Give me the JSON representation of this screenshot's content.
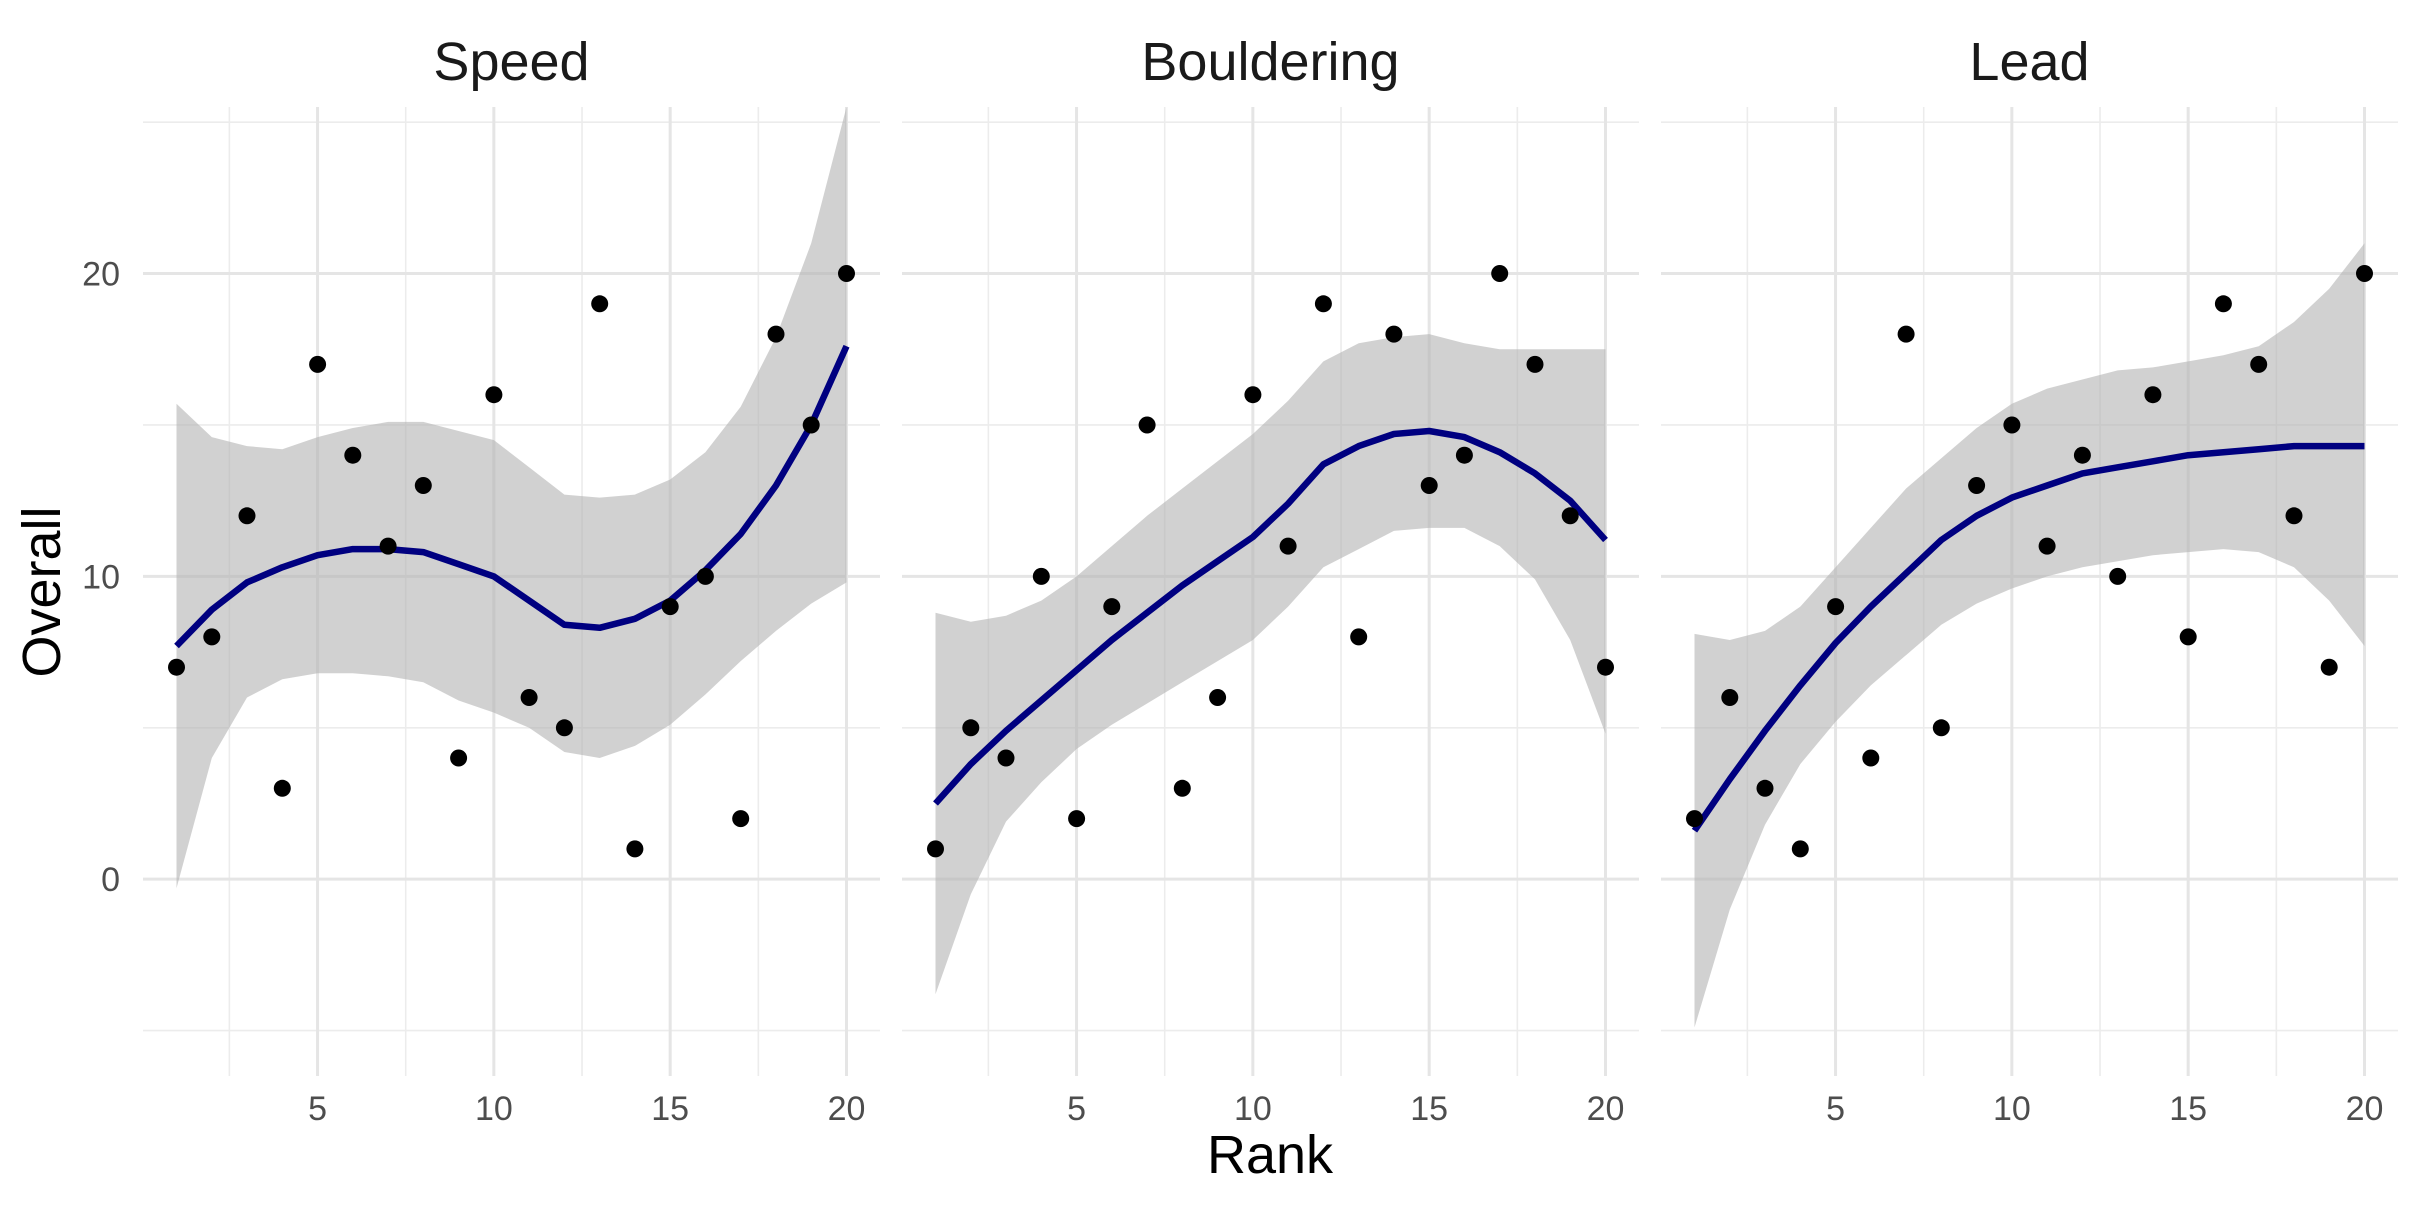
{
  "chart_data": {
    "type": "scatter",
    "facets": [
      {
        "label": "Speed",
        "x": [
          1,
          2,
          3,
          4,
          5,
          6,
          7,
          8,
          9,
          10,
          11,
          12,
          13,
          14,
          15,
          16,
          17,
          18,
          19,
          20
        ],
        "y": [
          7,
          8,
          12,
          3,
          17,
          14,
          11,
          13,
          4,
          16,
          6,
          5,
          19,
          1,
          9,
          10,
          2,
          18,
          15,
          20
        ],
        "smooth_x": [
          1,
          2,
          3,
          4,
          5,
          6,
          7,
          8,
          9,
          10,
          11,
          12,
          13,
          14,
          15,
          16,
          17,
          18,
          19,
          20
        ],
        "smooth_y": [
          7.7,
          8.9,
          9.8,
          10.3,
          10.7,
          10.9,
          10.9,
          10.8,
          10.4,
          10.0,
          9.2,
          8.4,
          8.3,
          8.6,
          9.2,
          10.2,
          11.4,
          13.0,
          15.0,
          17.6
        ],
        "ci_lower": [
          -0.3,
          4.0,
          6.0,
          6.6,
          6.8,
          6.8,
          6.7,
          6.5,
          5.9,
          5.5,
          5.0,
          4.2,
          4.0,
          4.4,
          5.1,
          6.1,
          7.2,
          8.2,
          9.1,
          9.8
        ],
        "ci_upper": [
          15.7,
          14.6,
          14.3,
          14.2,
          14.6,
          14.9,
          15.1,
          15.1,
          14.8,
          14.5,
          13.6,
          12.7,
          12.6,
          12.7,
          13.2,
          14.1,
          15.6,
          17.9,
          21.0,
          25.5
        ]
      },
      {
        "label": "Bouldering",
        "x": [
          1,
          2,
          3,
          4,
          5,
          6,
          7,
          8,
          9,
          10,
          11,
          12,
          13,
          14,
          15,
          16,
          17,
          18,
          19,
          20
        ],
        "y": [
          1,
          5,
          4,
          10,
          2,
          9,
          15,
          3,
          6,
          16,
          11,
          19,
          8,
          18,
          13,
          14,
          20,
          17,
          12,
          7
        ],
        "smooth_x": [
          1,
          2,
          3,
          4,
          5,
          6,
          7,
          8,
          9,
          10,
          11,
          12,
          13,
          14,
          15,
          16,
          17,
          18,
          19,
          20
        ],
        "smooth_y": [
          2.5,
          3.8,
          4.9,
          5.9,
          6.9,
          7.9,
          8.8,
          9.7,
          10.5,
          11.3,
          12.4,
          13.7,
          14.3,
          14.7,
          14.8,
          14.6,
          14.1,
          13.4,
          12.5,
          11.2
        ],
        "ci_lower": [
          -3.8,
          -0.5,
          1.9,
          3.2,
          4.3,
          5.1,
          5.8,
          6.5,
          7.2,
          7.9,
          9.0,
          10.3,
          10.9,
          11.5,
          11.6,
          11.6,
          11.0,
          9.9,
          7.9,
          4.8
        ],
        "ci_upper": [
          8.8,
          8.5,
          8.7,
          9.2,
          10.0,
          11.0,
          12.0,
          12.9,
          13.8,
          14.7,
          15.8,
          17.1,
          17.7,
          17.9,
          18.0,
          17.7,
          17.5,
          17.5,
          17.5,
          17.5
        ]
      },
      {
        "label": "Lead",
        "x": [
          1,
          2,
          3,
          4,
          5,
          6,
          7,
          8,
          9,
          10,
          11,
          12,
          13,
          14,
          15,
          16,
          17,
          18,
          19,
          20
        ],
        "y": [
          2,
          6,
          3,
          1,
          9,
          4,
          18,
          5,
          13,
          15,
          11,
          14,
          10,
          16,
          8,
          19,
          17,
          12,
          7,
          20
        ],
        "smooth_x": [
          1,
          2,
          3,
          4,
          5,
          6,
          7,
          8,
          9,
          10,
          11,
          12,
          13,
          14,
          15,
          16,
          17,
          18,
          19,
          20
        ],
        "smooth_y": [
          1.6,
          3.3,
          4.9,
          6.4,
          7.8,
          9.0,
          10.1,
          11.2,
          12.0,
          12.6,
          13.0,
          13.4,
          13.6,
          13.8,
          14.0,
          14.1,
          14.2,
          14.3,
          14.3,
          14.3
        ],
        "ci_lower": [
          -4.9,
          -1.0,
          1.8,
          3.8,
          5.2,
          6.4,
          7.4,
          8.4,
          9.1,
          9.6,
          10.0,
          10.3,
          10.5,
          10.7,
          10.8,
          10.9,
          10.8,
          10.3,
          9.2,
          7.7
        ],
        "ci_upper": [
          8.1,
          7.9,
          8.2,
          9.0,
          10.3,
          11.6,
          12.9,
          13.9,
          14.9,
          15.7,
          16.2,
          16.5,
          16.8,
          16.9,
          17.1,
          17.3,
          17.6,
          18.4,
          19.5,
          21.0
        ]
      }
    ],
    "xlabel": "Rank",
    "ylabel": "Overall",
    "xlim": [
      0.05,
      20.95
    ],
    "ylim": [
      -6.5,
      25.5
    ],
    "x_ticks": [
      5,
      10,
      15,
      20
    ],
    "y_ticks": [
      0,
      10,
      20
    ],
    "grid": true,
    "point_color": "#000000",
    "line_color": "#000080",
    "ribbon_color": "#b3b3b3"
  }
}
